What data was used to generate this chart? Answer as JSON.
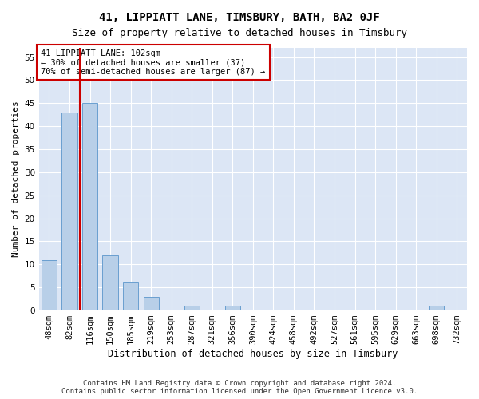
{
  "title": "41, LIPPIATT LANE, TIMSBURY, BATH, BA2 0JF",
  "subtitle": "Size of property relative to detached houses in Timsbury",
  "xlabel": "Distribution of detached houses by size in Timsbury",
  "ylabel": "Number of detached properties",
  "categories": [
    "48sqm",
    "82sqm",
    "116sqm",
    "150sqm",
    "185sqm",
    "219sqm",
    "253sqm",
    "287sqm",
    "321sqm",
    "356sqm",
    "390sqm",
    "424sqm",
    "458sqm",
    "492sqm",
    "527sqm",
    "561sqm",
    "595sqm",
    "629sqm",
    "663sqm",
    "698sqm",
    "732sqm"
  ],
  "values": [
    11,
    43,
    45,
    12,
    6,
    3,
    0,
    1,
    0,
    1,
    0,
    0,
    0,
    0,
    0,
    0,
    0,
    0,
    0,
    1,
    0
  ],
  "bar_color": "#b8cfe8",
  "bar_edge_color": "#6a9fd0",
  "vline_x": 1.5,
  "vline_color": "#cc0000",
  "ylim": [
    0,
    57
  ],
  "yticks": [
    0,
    5,
    10,
    15,
    20,
    25,
    30,
    35,
    40,
    45,
    50,
    55
  ],
  "annotation_text": "41 LIPPIATT LANE: 102sqm\n← 30% of detached houses are smaller (37)\n70% of semi-detached houses are larger (87) →",
  "annotation_box_facecolor": "#ffffff",
  "annotation_box_edgecolor": "#cc0000",
  "background_color": "#dce6f5",
  "footer": "Contains HM Land Registry data © Crown copyright and database right 2024.\nContains public sector information licensed under the Open Government Licence v3.0.",
  "title_fontsize": 10,
  "subtitle_fontsize": 9,
  "xlabel_fontsize": 8.5,
  "ylabel_fontsize": 8,
  "tick_fontsize": 7.5,
  "annotation_fontsize": 7.5,
  "footer_fontsize": 6.5
}
